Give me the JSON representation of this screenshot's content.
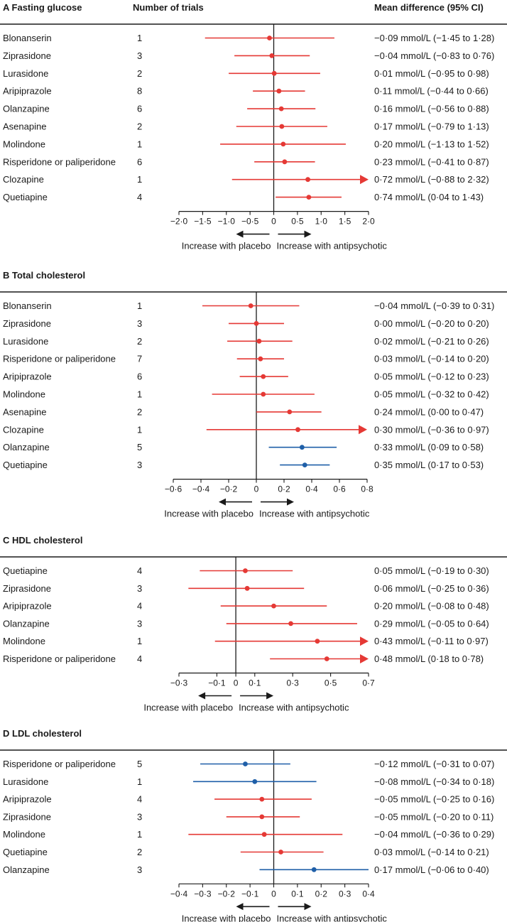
{
  "header": {
    "trials_label": "Number of trials",
    "effect_label": "Mean difference (95% CI)"
  },
  "colors": {
    "red": "#e53935",
    "blue": "#1f5fa8",
    "axis": "#1a1a1a"
  },
  "chart_data": [
    {
      "type": "forest",
      "panel_letter": "A",
      "title": "Fasting glucose",
      "xlim": [
        -2.0,
        2.0
      ],
      "ticks": [
        "−2·0",
        "−1·5",
        "−1·0",
        "−0·5",
        "0",
        "0·5",
        "1·0",
        "1·5",
        "2·0"
      ],
      "tick_values": [
        -2.0,
        -1.5,
        -1.0,
        -0.5,
        0,
        0.5,
        1.0,
        1.5,
        2.0
      ],
      "left_direction": "Increase with placebo",
      "right_direction": "Increase with antipsychotic",
      "rows": [
        {
          "drug": "Blonanserin",
          "trials": "1",
          "mean": -0.09,
          "lo": -1.45,
          "hi": 1.28,
          "color": "red",
          "ci_text": "−0·09 mmol/L (−1·45 to 1·28)"
        },
        {
          "drug": "Ziprasidone",
          "trials": "3",
          "mean": -0.04,
          "lo": -0.83,
          "hi": 0.76,
          "color": "red",
          "ci_text": "−0·04 mmol/L (−0·83 to 0·76)"
        },
        {
          "drug": "Lurasidone",
          "trials": "2",
          "mean": 0.01,
          "lo": -0.95,
          "hi": 0.98,
          "color": "red",
          "ci_text": "0·01 mmol/L (−0·95 to 0·98)"
        },
        {
          "drug": "Aripiprazole",
          "trials": "8",
          "mean": 0.11,
          "lo": -0.44,
          "hi": 0.66,
          "color": "red",
          "ci_text": "0·11 mmol/L (−0·44 to 0·66)"
        },
        {
          "drug": "Olanzapine",
          "trials": "6",
          "mean": 0.16,
          "lo": -0.56,
          "hi": 0.88,
          "color": "red",
          "ci_text": "0·16 mmol/L (−0·56 to 0·88)"
        },
        {
          "drug": "Asenapine",
          "trials": "2",
          "mean": 0.17,
          "lo": -0.79,
          "hi": 1.13,
          "color": "red",
          "ci_text": "0·17 mmol/L (−0·79 to 1·13)"
        },
        {
          "drug": "Molindone",
          "trials": "1",
          "mean": 0.2,
          "lo": -1.13,
          "hi": 1.52,
          "color": "red",
          "ci_text": "0·20 mmol/L (−1·13 to 1·52)"
        },
        {
          "drug": "Risperidone or paliperidone",
          "trials": "6",
          "mean": 0.23,
          "lo": -0.41,
          "hi": 0.87,
          "color": "red",
          "ci_text": "0·23 mmol/L (−0·41 to 0·87)"
        },
        {
          "drug": "Clozapine",
          "trials": "1",
          "mean": 0.72,
          "lo": -0.88,
          "hi": 2.32,
          "color": "red",
          "ci_text": "0·72 mmol/L (−0·88 to 2·32)"
        },
        {
          "drug": "Quetiapine",
          "trials": "4",
          "mean": 0.74,
          "lo": 0.04,
          "hi": 1.43,
          "color": "red",
          "ci_text": "0·74 mmol/L (0·04 to 1·43)"
        }
      ]
    },
    {
      "type": "forest",
      "panel_letter": "B",
      "title": "Total cholesterol",
      "xlim": [
        -0.6,
        0.8
      ],
      "ticks": [
        "−0·6",
        "−0·4",
        "−0·2",
        "0",
        "0·2",
        "0·4",
        "0·6",
        "0·8"
      ],
      "tick_values": [
        -0.6,
        -0.4,
        -0.2,
        0,
        0.2,
        0.4,
        0.6,
        0.8
      ],
      "left_direction": "Increase with placebo",
      "right_direction": "Increase with antipsychotic",
      "rows": [
        {
          "drug": "Blonanserin",
          "trials": "1",
          "mean": -0.04,
          "lo": -0.39,
          "hi": 0.31,
          "color": "red",
          "ci_text": "−0·04 mmol/L (−0·39 to 0·31)"
        },
        {
          "drug": "Ziprasidone",
          "trials": "3",
          "mean": 0.0,
          "lo": -0.2,
          "hi": 0.2,
          "color": "red",
          "ci_text": "0·00 mmol/L (−0·20 to 0·20)"
        },
        {
          "drug": "Lurasidone",
          "trials": "2",
          "mean": 0.02,
          "lo": -0.21,
          "hi": 0.26,
          "color": "red",
          "ci_text": "0·02 mmol/L (−0·21 to 0·26)"
        },
        {
          "drug": "Risperidone or paliperidone",
          "trials": "7",
          "mean": 0.03,
          "lo": -0.14,
          "hi": 0.2,
          "color": "red",
          "ci_text": "0·03 mmol/L (−0·14 to 0·20)"
        },
        {
          "drug": "Aripiprazole",
          "trials": "6",
          "mean": 0.05,
          "lo": -0.12,
          "hi": 0.23,
          "color": "red",
          "ci_text": "0·05 mmol/L (−0·12 to 0·23)"
        },
        {
          "drug": "Molindone",
          "trials": "1",
          "mean": 0.05,
          "lo": -0.32,
          "hi": 0.42,
          "color": "red",
          "ci_text": "0·05 mmol/L (−0·32 to 0·42)"
        },
        {
          "drug": "Asenapine",
          "trials": "2",
          "mean": 0.24,
          "lo": 0.0,
          "hi": 0.47,
          "color": "red",
          "ci_text": "0·24 mmol/L (0·00 to 0·47)"
        },
        {
          "drug": "Clozapine",
          "trials": "1",
          "mean": 0.3,
          "lo": -0.36,
          "hi": 0.97,
          "color": "red",
          "ci_text": "0·30 mmol/L (−0·36 to 0·97)"
        },
        {
          "drug": "Olanzapine",
          "trials": "5",
          "mean": 0.33,
          "lo": 0.09,
          "hi": 0.58,
          "color": "blue",
          "ci_text": "0·33 mmol/L (0·09 to 0·58)"
        },
        {
          "drug": "Quetiapine",
          "trials": "3",
          "mean": 0.35,
          "lo": 0.17,
          "hi": 0.53,
          "color": "blue",
          "ci_text": "0·35 mmol/L (0·17 to 0·53)"
        }
      ]
    },
    {
      "type": "forest",
      "panel_letter": "C",
      "title": "HDL cholesterol",
      "xlim": [
        -0.3,
        0.7
      ],
      "ticks": [
        "−0·3",
        "−0·1",
        "0",
        "0·1",
        "0·3",
        "0·5",
        "0·7"
      ],
      "tick_values": [
        -0.3,
        -0.1,
        0,
        0.1,
        0.3,
        0.5,
        0.7
      ],
      "left_direction": "Increase with placebo",
      "right_direction": "Increase with antipsychotic",
      "rows": [
        {
          "drug": "Quetiapine",
          "trials": "4",
          "mean": 0.05,
          "lo": -0.19,
          "hi": 0.3,
          "color": "red",
          "ci_text": "0·05 mmol/L (−0·19 to 0·30)"
        },
        {
          "drug": "Ziprasidone",
          "trials": "3",
          "mean": 0.06,
          "lo": -0.25,
          "hi": 0.36,
          "color": "red",
          "ci_text": "0·06 mmol/L (−0·25 to 0·36)"
        },
        {
          "drug": "Aripiprazole",
          "trials": "4",
          "mean": 0.2,
          "lo": -0.08,
          "hi": 0.48,
          "color": "red",
          "ci_text": "0·20 mmol/L (−0·08 to 0·48)"
        },
        {
          "drug": "Olanzapine",
          "trials": "3",
          "mean": 0.29,
          "lo": -0.05,
          "hi": 0.64,
          "color": "red",
          "ci_text": "0·29 mmol/L (−0·05 to 0·64)"
        },
        {
          "drug": "Molindone",
          "trials": "1",
          "mean": 0.43,
          "lo": -0.11,
          "hi": 0.97,
          "color": "red",
          "ci_text": "0·43 mmol/L (−0·11 to 0·97)"
        },
        {
          "drug": "Risperidone or paliperidone",
          "trials": "4",
          "mean": 0.48,
          "lo": 0.18,
          "hi": 0.78,
          "color": "red",
          "ci_text": "0·48 mmol/L (0·18 to 0·78)"
        }
      ]
    },
    {
      "type": "forest",
      "panel_letter": "D",
      "title": "LDL cholesterol",
      "xlim": [
        -0.4,
        0.4
      ],
      "ticks": [
        "−0·4",
        "−0·3",
        "−0·2",
        "−0·1",
        "0",
        "0·1",
        "0·2",
        "0·3",
        "0·4"
      ],
      "tick_values": [
        -0.4,
        -0.3,
        -0.2,
        -0.1,
        0,
        0.1,
        0.2,
        0.3,
        0.4
      ],
      "left_direction": "Increase with placebo",
      "right_direction": "Increase with antipsychotic",
      "rows": [
        {
          "drug": "Risperidone or paliperidone",
          "trials": "5",
          "mean": -0.12,
          "lo": -0.31,
          "hi": 0.07,
          "color": "blue",
          "ci_text": "−0·12 mmol/L (−0·31 to 0·07)"
        },
        {
          "drug": "Lurasidone",
          "trials": "1",
          "mean": -0.08,
          "lo": -0.34,
          "hi": 0.18,
          "color": "blue",
          "ci_text": "−0·08 mmol/L (−0·34 to 0·18)"
        },
        {
          "drug": "Aripiprazole",
          "trials": "4",
          "mean": -0.05,
          "lo": -0.25,
          "hi": 0.16,
          "color": "red",
          "ci_text": "−0·05 mmol/L (−0·25 to 0·16)"
        },
        {
          "drug": "Ziprasidone",
          "trials": "3",
          "mean": -0.05,
          "lo": -0.2,
          "hi": 0.11,
          "color": "red",
          "ci_text": "−0·05 mmol/L (−0·20 to 0·11)"
        },
        {
          "drug": "Molindone",
          "trials": "1",
          "mean": -0.04,
          "lo": -0.36,
          "hi": 0.29,
          "color": "red",
          "ci_text": "−0·04 mmol/L (−0·36 to 0·29)"
        },
        {
          "drug": "Quetiapine",
          "trials": "2",
          "mean": 0.03,
          "lo": -0.14,
          "hi": 0.21,
          "color": "red",
          "ci_text": "0·03 mmol/L (−0·14 to 0·21)"
        },
        {
          "drug": "Olanzapine",
          "trials": "3",
          "mean": 0.17,
          "lo": -0.06,
          "hi": 0.4,
          "color": "blue",
          "ci_text": "0·17 mmol/L (−0·06 to 0·40)"
        }
      ]
    }
  ]
}
